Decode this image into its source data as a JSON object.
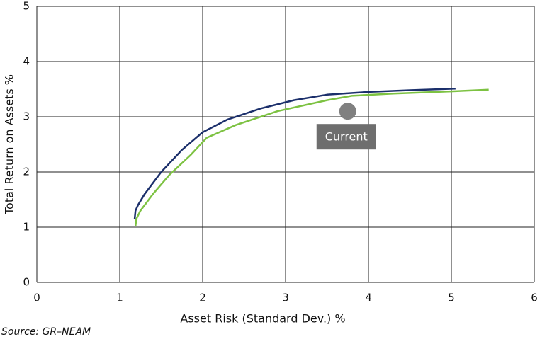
{
  "chart_data": {
    "type": "line",
    "x_label": "Asset Risk (Standard Dev.) %",
    "y_label": "Total Return on Assets %",
    "source": "Source: GR–NEAM",
    "xlim": [
      0,
      6
    ],
    "xticks": [
      0,
      1,
      2,
      3,
      4,
      5,
      6
    ],
    "ylim": [
      0,
      5
    ],
    "yticks": [
      0,
      1,
      2,
      3,
      4,
      5
    ],
    "grid": true,
    "series": [
      {
        "color": "#1b2f6b",
        "x": [
          1.18,
          1.19,
          1.22,
          1.3,
          1.5,
          1.75,
          2.0,
          2.3,
          2.7,
          3.1,
          3.5,
          4.0,
          4.5,
          5.05
        ],
        "values": [
          1.15,
          1.3,
          1.4,
          1.6,
          2.0,
          2.4,
          2.72,
          2.95,
          3.15,
          3.3,
          3.4,
          3.45,
          3.48,
          3.51
        ]
      },
      {
        "color": "#7dc242",
        "x": [
          1.19,
          1.2,
          1.25,
          1.4,
          1.6,
          1.85,
          2.05,
          2.4,
          2.9,
          3.5,
          3.8,
          4.3,
          5.0,
          5.45
        ],
        "values": [
          1.02,
          1.15,
          1.3,
          1.6,
          1.95,
          2.3,
          2.62,
          2.85,
          3.1,
          3.3,
          3.38,
          3.42,
          3.46,
          3.49
        ]
      }
    ],
    "annotations": [
      {
        "text": "Current",
        "x": 3.75,
        "y": 3.1,
        "color": "#808080"
      }
    ]
  }
}
